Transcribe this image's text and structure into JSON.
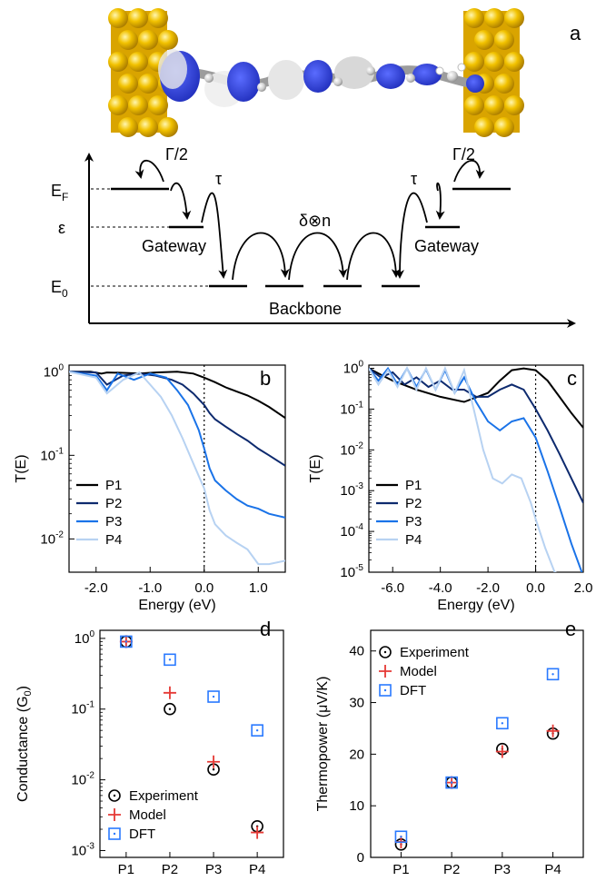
{
  "panel_letters": {
    "a": "a",
    "b": "b",
    "c": "c",
    "d": "d",
    "e": "e"
  },
  "schematic": {
    "gamma_left": "Γ/2",
    "gamma_right": "Γ/2",
    "tau_left": "τ",
    "tau_right": "τ",
    "delta_n": "δ⊗n",
    "ef_main": "E",
    "ef_sub": "F",
    "eps": "ε",
    "e0_main": "E",
    "e0_sub": "0",
    "gateway_left": "Gateway",
    "gateway_right": "Gateway",
    "backbone": "Backbone"
  },
  "colors": {
    "P1": "#000000",
    "P2": "#0d2a6e",
    "P3": "#1a73e8",
    "P4": "#b7d2f2",
    "gold": "#e8b400",
    "model": "#e53935",
    "dft": "#2979ff"
  },
  "chart_data": [
    {
      "id": "b",
      "type": "line",
      "xlabel": "Energy (eV)",
      "ylabel": "T(E)",
      "xlim": [
        -2.5,
        1.5
      ],
      "ylim": [
        0.004,
        1.2
      ],
      "yscale": "log",
      "xticks": [
        "-2.0",
        "-1.0",
        "0.0",
        "1.0"
      ],
      "yticks_base": [
        "10",
        "10",
        "10"
      ],
      "yticks_exp": [
        "0",
        "-1",
        "-2"
      ],
      "legend": "left",
      "series": [
        {
          "name": "P1",
          "x": [
            -2.5,
            -2.1,
            -1.9,
            -1.8,
            -1.5,
            -1.2,
            -0.9,
            -0.5,
            -0.2,
            0.0,
            0.2,
            0.4,
            0.6,
            0.8,
            1.0,
            1.2,
            1.5
          ],
          "y": [
            1.0,
            1.0,
            0.95,
            0.98,
            0.97,
            0.95,
            0.98,
            1.0,
            0.95,
            0.85,
            0.75,
            0.65,
            0.58,
            0.52,
            0.45,
            0.38,
            0.28
          ]
        },
        {
          "name": "P2",
          "x": [
            -2.5,
            -2.0,
            -1.8,
            -1.5,
            -1.2,
            -0.9,
            -0.6,
            -0.4,
            -0.2,
            0.0,
            0.1,
            0.2,
            0.4,
            0.6,
            0.8,
            1.0,
            1.2,
            1.5
          ],
          "y": [
            1.0,
            0.98,
            0.7,
            0.9,
            0.95,
            0.9,
            0.8,
            0.7,
            0.55,
            0.4,
            0.32,
            0.27,
            0.22,
            0.18,
            0.15,
            0.12,
            0.1,
            0.075
          ]
        },
        {
          "name": "P3",
          "x": [
            -2.5,
            -2.0,
            -1.8,
            -1.6,
            -1.3,
            -1.0,
            -0.7,
            -0.5,
            -0.3,
            -0.1,
            0.0,
            0.1,
            0.2,
            0.4,
            0.6,
            0.8,
            1.0,
            1.2,
            1.5
          ],
          "y": [
            1.0,
            0.9,
            0.6,
            0.95,
            0.8,
            0.95,
            0.85,
            0.6,
            0.4,
            0.2,
            0.12,
            0.07,
            0.05,
            0.038,
            0.03,
            0.025,
            0.023,
            0.02,
            0.018
          ]
        },
        {
          "name": "P4",
          "x": [
            -2.5,
            -2.0,
            -1.8,
            -1.5,
            -1.2,
            -1.0,
            -0.8,
            -0.6,
            -0.4,
            -0.2,
            0.0,
            0.1,
            0.2,
            0.4,
            0.6,
            0.8,
            1.0,
            1.2,
            1.5
          ],
          "y": [
            1.0,
            0.85,
            0.55,
            0.8,
            0.98,
            0.7,
            0.5,
            0.3,
            0.16,
            0.08,
            0.04,
            0.022,
            0.015,
            0.011,
            0.009,
            0.0075,
            0.005,
            0.005,
            0.0055
          ]
        }
      ]
    },
    {
      "id": "c",
      "type": "line",
      "xlabel": "Energy (eV)",
      "ylabel": "T(E)",
      "xlim": [
        -7,
        2
      ],
      "ylim": [
        1e-05,
        1.2
      ],
      "yscale": "log",
      "xticks": [
        "-6.0",
        "-4.0",
        "-2.0",
        "0.0",
        "2.0"
      ],
      "yticks_base": [
        "10",
        "10",
        "10",
        "10",
        "10",
        "10"
      ],
      "yticks_exp": [
        "0",
        "-1",
        "-2",
        "-3",
        "-4",
        "-5"
      ],
      "legend": "left",
      "series": [
        {
          "name": "P1",
          "x": [
            -7,
            -6.5,
            -6.0,
            -5.0,
            -4.0,
            -3.0,
            -2.0,
            -1.5,
            -1.0,
            -0.5,
            0.0,
            0.5,
            1.0,
            1.5,
            2.0
          ],
          "y": [
            1.0,
            0.7,
            0.5,
            0.3,
            0.2,
            0.15,
            0.25,
            0.5,
            0.9,
            1.0,
            0.9,
            0.5,
            0.2,
            0.08,
            0.035
          ]
        },
        {
          "name": "P2",
          "x": [
            -7,
            -6.5,
            -6.0,
            -5.5,
            -5.0,
            -4.5,
            -4.0,
            -3.5,
            -3.0,
            -2.5,
            -2.0,
            -1.5,
            -1.0,
            -0.5,
            0.0,
            0.5,
            1.0,
            1.5,
            2.0
          ],
          "y": [
            1.0,
            0.6,
            0.8,
            0.4,
            0.6,
            0.35,
            0.5,
            0.3,
            0.3,
            0.2,
            0.2,
            0.3,
            0.4,
            0.3,
            0.1,
            0.03,
            0.008,
            0.002,
            0.0005
          ]
        },
        {
          "name": "P3",
          "x": [
            -7,
            -6.6,
            -6.2,
            -5.8,
            -5.4,
            -5.0,
            -4.6,
            -4.2,
            -3.8,
            -3.4,
            -3.0,
            -2.5,
            -2.0,
            -1.5,
            -1.0,
            -0.5,
            0.0,
            0.5,
            1.0,
            1.5,
            2.0
          ],
          "y": [
            1.0,
            0.5,
            1.0,
            0.4,
            1.0,
            0.35,
            0.95,
            0.3,
            0.9,
            0.25,
            0.6,
            0.15,
            0.05,
            0.03,
            0.05,
            0.06,
            0.02,
            0.003,
            0.0004,
            5e-05,
            8e-06
          ]
        },
        {
          "name": "P4",
          "x": [
            -7,
            -6.6,
            -6.2,
            -5.8,
            -5.4,
            -5.0,
            -4.6,
            -4.2,
            -3.8,
            -3.4,
            -3.0,
            -2.6,
            -2.2,
            -1.8,
            -1.4,
            -1.0,
            -0.6,
            -0.2,
            0.0,
            0.4,
            0.8,
            1.2
          ],
          "y": [
            1.0,
            0.4,
            0.9,
            0.35,
            1.0,
            0.3,
            1.0,
            0.3,
            1.0,
            0.25,
            0.9,
            0.1,
            0.01,
            0.002,
            0.0015,
            0.0025,
            0.002,
            0.0005,
            0.0002,
            4e-05,
            1e-05,
            8e-06
          ]
        }
      ]
    },
    {
      "id": "d",
      "type": "scatter",
      "xlabel": "",
      "ylabel": "Conductance (G",
      "ylabel_sub": "0",
      "ylabel_end": ")",
      "categories": [
        "P1",
        "P2",
        "P3",
        "P4"
      ],
      "ylim": [
        0.0008,
        1.3
      ],
      "yscale": "log",
      "yticks_base": [
        "10",
        "10",
        "10",
        "10"
      ],
      "yticks_exp": [
        "0",
        "-1",
        "-2",
        "-3"
      ],
      "legend": "bottom-left",
      "series": [
        {
          "name": "Experiment",
          "marker": "circle",
          "values": [
            0.9,
            0.1,
            0.014,
            0.0022
          ]
        },
        {
          "name": "Model",
          "marker": "plus",
          "values": [
            0.9,
            0.17,
            0.018,
            0.0018
          ]
        },
        {
          "name": "DFT",
          "marker": "square",
          "values": [
            0.9,
            0.5,
            0.15,
            0.05
          ]
        }
      ]
    },
    {
      "id": "e",
      "type": "scatter",
      "xlabel": "",
      "ylabel": "Thermopower (μV/K)",
      "categories": [
        "P1",
        "P2",
        "P3",
        "P4"
      ],
      "ylim": [
        0,
        44
      ],
      "yticks": [
        "0",
        "10",
        "20",
        "30",
        "40"
      ],
      "legend": "top-left",
      "series": [
        {
          "name": "Experiment",
          "marker": "circle",
          "values": [
            2.5,
            14.5,
            21,
            24
          ]
        },
        {
          "name": "Model",
          "marker": "plus",
          "values": [
            3,
            14.5,
            20.5,
            24.5
          ]
        },
        {
          "name": "DFT",
          "marker": "square",
          "values": [
            4,
            14.5,
            26,
            35.5
          ]
        }
      ]
    }
  ]
}
